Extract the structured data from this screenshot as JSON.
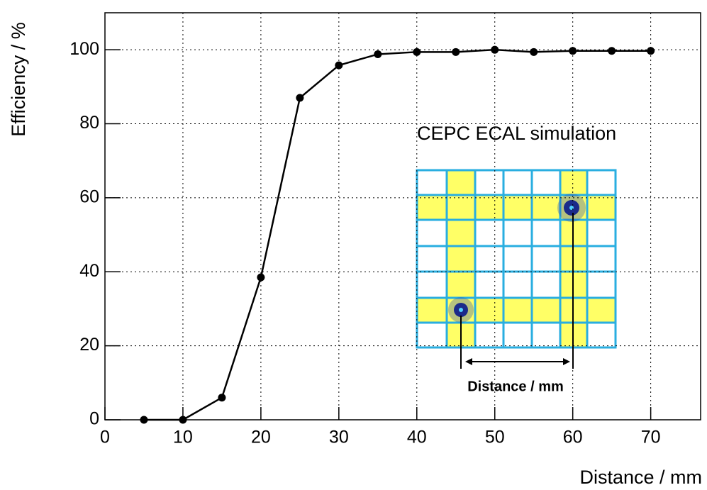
{
  "chart_data": {
    "type": "line",
    "x_label": "Distance / mm",
    "y_label": "Efficiency / %",
    "x": [
      5,
      10,
      15,
      20,
      25,
      30,
      35,
      40,
      45,
      50,
      55,
      60,
      65,
      70
    ],
    "series": [
      {
        "color": "#000000",
        "values": [
          0,
          0,
          6,
          38.5,
          87,
          95.8,
          98.8,
          99.4,
          99.4,
          100,
          99.4,
          99.7,
          99.7,
          99.7
        ]
      }
    ],
    "xlim": [
      0,
      76.4
    ],
    "xticks": [
      0,
      10,
      20,
      30,
      40,
      50,
      60,
      70
    ],
    "ylim": [
      0,
      110
    ],
    "yticks": [
      0,
      20,
      40,
      60,
      80,
      100
    ],
    "grid": true,
    "annotations": [
      "CEPC ECAL simulation",
      "Distance / mm"
    ]
  }
}
